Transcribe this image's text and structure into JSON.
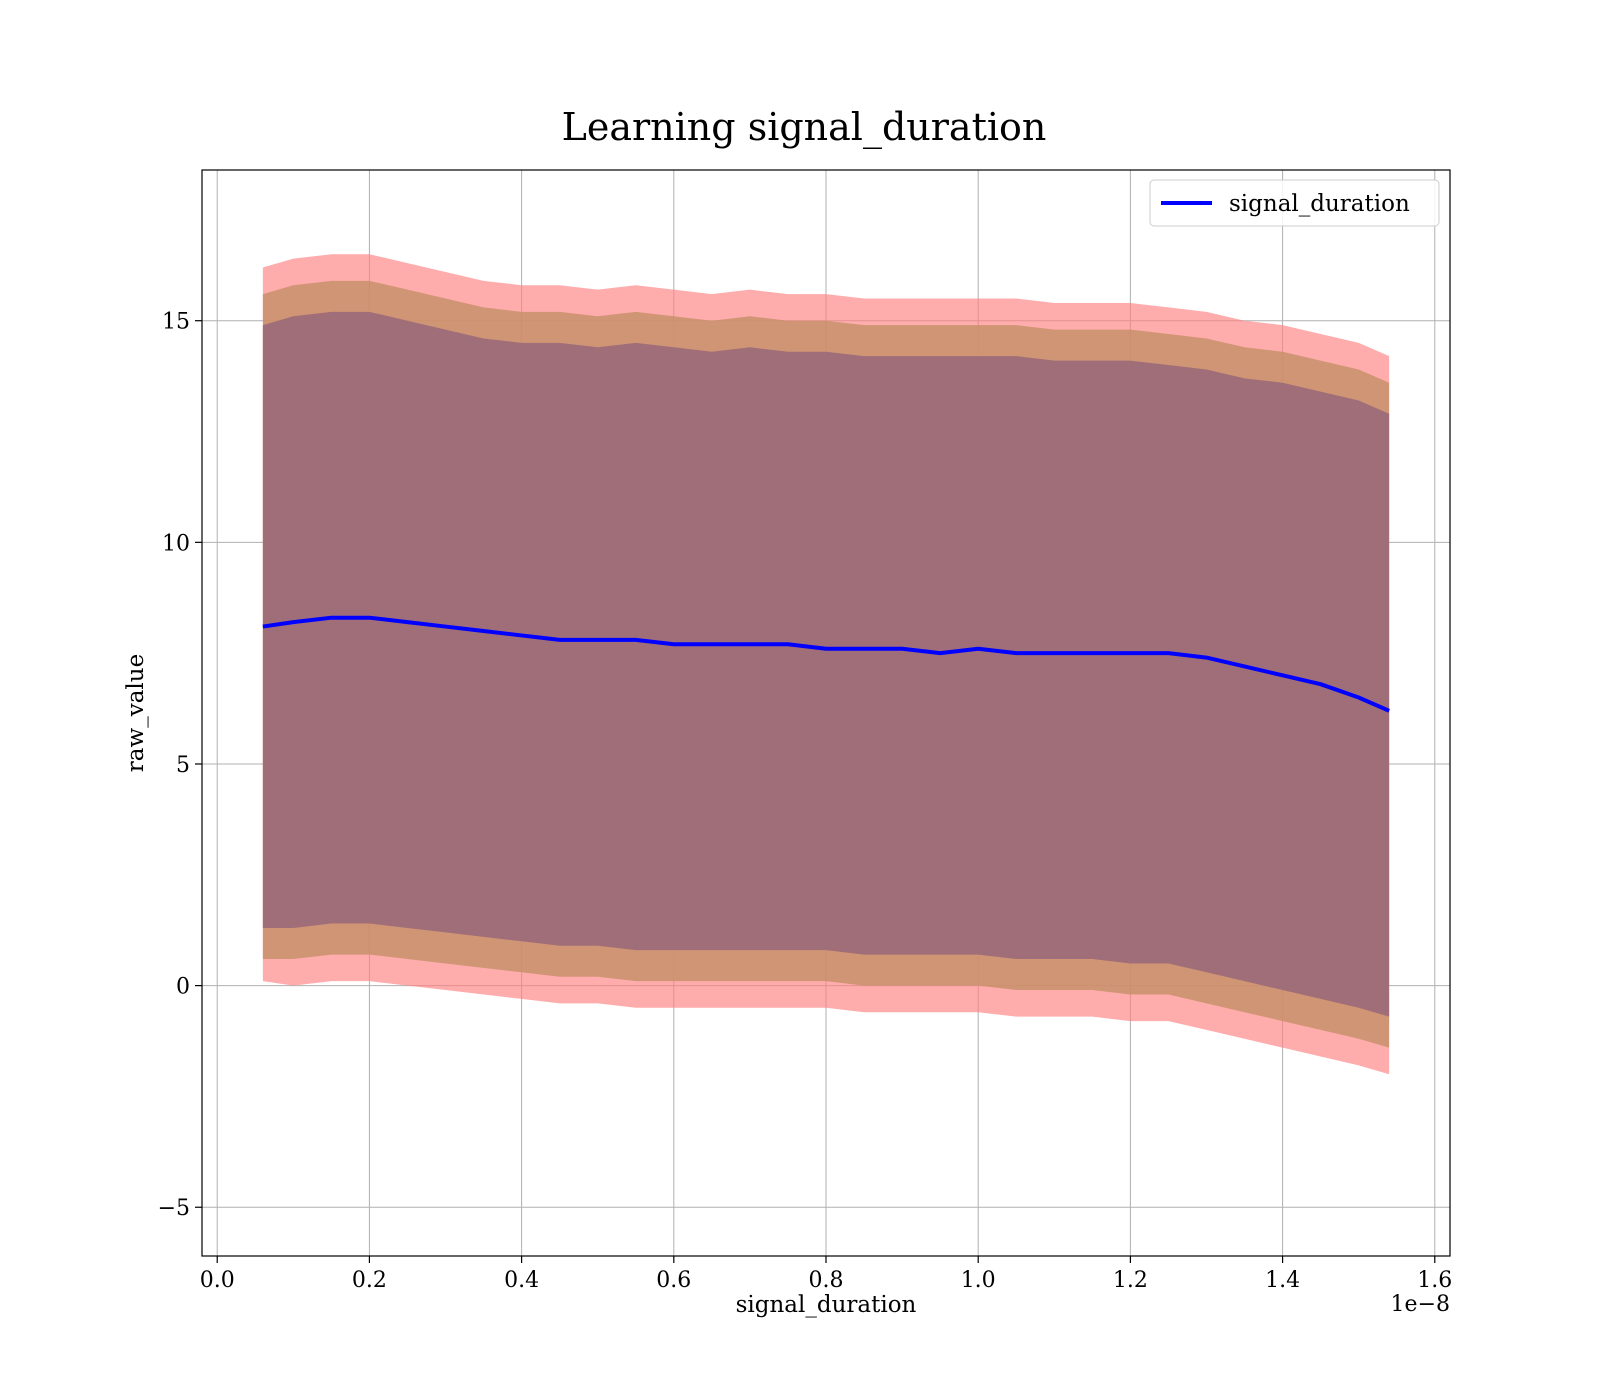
{
  "chart_data": {
    "type": "line",
    "title": "Learning signal_duration",
    "xlabel": "signal_duration",
    "ylabel": "raw_value",
    "x_offset_label": "1e−8",
    "xlim": [
      -0.02,
      1.62
    ],
    "ylim": [
      -6.1,
      18.4
    ],
    "xticks": [
      0.0,
      0.2,
      0.4,
      0.6,
      0.8,
      1.0,
      1.2,
      1.4,
      1.6
    ],
    "xtick_labels": [
      "0.0",
      "0.2",
      "0.4",
      "0.6",
      "0.8",
      "1.0",
      "1.2",
      "1.4",
      "1.6"
    ],
    "yticks": [
      -5,
      0,
      5,
      10,
      15
    ],
    "ytick_labels": [
      "−5",
      "0",
      "5",
      "10",
      "15"
    ],
    "grid": true,
    "legend": {
      "placement": "top-right",
      "entries": [
        "signal_duration"
      ]
    },
    "colors": {
      "mean_line": "#0000ff",
      "band_outer": "#ff8080",
      "band_mid": "#c8906a",
      "band_inner": "#a06e78"
    },
    "x": [
      0.06,
      0.1,
      0.15,
      0.2,
      0.25,
      0.3,
      0.35,
      0.4,
      0.45,
      0.5,
      0.55,
      0.6,
      0.65,
      0.7,
      0.75,
      0.8,
      0.85,
      0.9,
      0.95,
      1.0,
      1.05,
      1.1,
      1.15,
      1.2,
      1.25,
      1.3,
      1.35,
      1.4,
      1.45,
      1.5,
      1.54
    ],
    "series": [
      {
        "name": "signal_duration",
        "role": "mean",
        "values": [
          8.1,
          8.2,
          8.3,
          8.3,
          8.2,
          8.1,
          8.0,
          7.9,
          7.8,
          7.8,
          7.8,
          7.7,
          7.7,
          7.7,
          7.7,
          7.6,
          7.6,
          7.6,
          7.5,
          7.6,
          7.5,
          7.5,
          7.5,
          7.5,
          7.5,
          7.4,
          7.2,
          7.0,
          6.8,
          6.5,
          6.2
        ]
      },
      {
        "role": "band_outer",
        "upper": [
          16.2,
          16.4,
          16.5,
          16.5,
          16.3,
          16.1,
          15.9,
          15.8,
          15.8,
          15.7,
          15.8,
          15.7,
          15.6,
          15.7,
          15.6,
          15.6,
          15.5,
          15.5,
          15.5,
          15.5,
          15.5,
          15.4,
          15.4,
          15.4,
          15.3,
          15.2,
          15.0,
          14.9,
          14.7,
          14.5,
          14.2
        ],
        "lower": [
          0.1,
          0.0,
          0.1,
          0.1,
          0.0,
          -0.1,
          -0.2,
          -0.3,
          -0.4,
          -0.4,
          -0.5,
          -0.5,
          -0.5,
          -0.5,
          -0.5,
          -0.5,
          -0.6,
          -0.6,
          -0.6,
          -0.6,
          -0.7,
          -0.7,
          -0.7,
          -0.8,
          -0.8,
          -1.0,
          -1.2,
          -1.4,
          -1.6,
          -1.8,
          -2.0
        ]
      },
      {
        "role": "band_mid",
        "upper": [
          15.6,
          15.8,
          15.9,
          15.9,
          15.7,
          15.5,
          15.3,
          15.2,
          15.2,
          15.1,
          15.2,
          15.1,
          15.0,
          15.1,
          15.0,
          15.0,
          14.9,
          14.9,
          14.9,
          14.9,
          14.9,
          14.8,
          14.8,
          14.8,
          14.7,
          14.6,
          14.4,
          14.3,
          14.1,
          13.9,
          13.6
        ],
        "lower": [
          0.6,
          0.6,
          0.7,
          0.7,
          0.6,
          0.5,
          0.4,
          0.3,
          0.2,
          0.2,
          0.1,
          0.1,
          0.1,
          0.1,
          0.1,
          0.1,
          0.0,
          0.0,
          0.0,
          0.0,
          -0.1,
          -0.1,
          -0.1,
          -0.2,
          -0.2,
          -0.4,
          -0.6,
          -0.8,
          -1.0,
          -1.2,
          -1.4
        ]
      },
      {
        "role": "band_inner",
        "upper": [
          14.9,
          15.1,
          15.2,
          15.2,
          15.0,
          14.8,
          14.6,
          14.5,
          14.5,
          14.4,
          14.5,
          14.4,
          14.3,
          14.4,
          14.3,
          14.3,
          14.2,
          14.2,
          14.2,
          14.2,
          14.2,
          14.1,
          14.1,
          14.1,
          14.0,
          13.9,
          13.7,
          13.6,
          13.4,
          13.2,
          12.9
        ],
        "lower": [
          1.3,
          1.3,
          1.4,
          1.4,
          1.3,
          1.2,
          1.1,
          1.0,
          0.9,
          0.9,
          0.8,
          0.8,
          0.8,
          0.8,
          0.8,
          0.8,
          0.7,
          0.7,
          0.7,
          0.7,
          0.6,
          0.6,
          0.6,
          0.5,
          0.5,
          0.3,
          0.1,
          -0.1,
          -0.3,
          -0.5,
          -0.7
        ]
      }
    ]
  }
}
